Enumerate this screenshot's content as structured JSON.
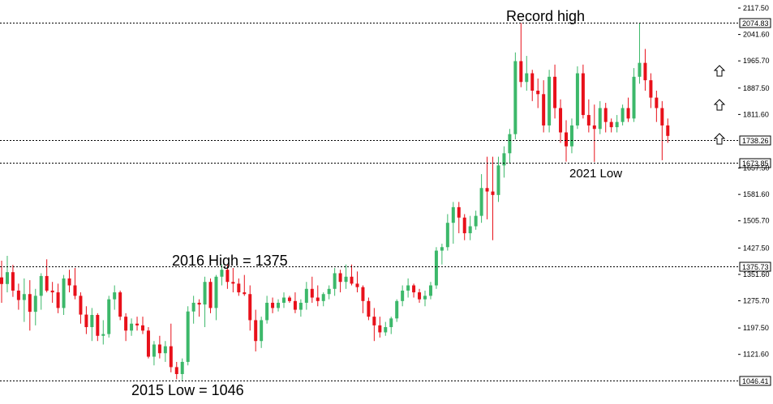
{
  "chart_data": {
    "type": "candlestick",
    "title": "",
    "xlabel": "",
    "ylabel": "",
    "ylim": [
      1046.41,
      2117.5
    ],
    "grid": false,
    "colors": {
      "up": "#3cb86a",
      "down": "#e8101a",
      "level_line": "#000000"
    },
    "y_ticks": [
      "2117.50",
      "2041.60",
      "1965.70",
      "1887.50",
      "1811.60",
      "1657.50",
      "1581.60",
      "1505.70",
      "1427.50",
      "1351.60",
      "1275.70",
      "1197.50",
      "1121.60"
    ],
    "levels": [
      {
        "value": 2074.83,
        "label": "2074.83"
      },
      {
        "value": 1738.26,
        "label": "1738.26"
      },
      {
        "value": 1673.85,
        "label": "1673.85"
      },
      {
        "value": 1375.73,
        "label": "1375.73"
      },
      {
        "value": 1046.41,
        "label": "1046.41"
      }
    ],
    "annotations": [
      {
        "text": "Record high"
      },
      {
        "text": "2021 Low"
      },
      {
        "text": "2016 High = 1375"
      },
      {
        "text": "2015 Low = 1046"
      }
    ],
    "candles": [
      [
        1343,
        1391,
        1270,
        1324
      ],
      [
        1324,
        1405,
        1300,
        1358
      ],
      [
        1358,
        1379,
        1287,
        1305
      ],
      [
        1305,
        1325,
        1250,
        1278
      ],
      [
        1278,
        1340,
        1215,
        1295
      ],
      [
        1295,
        1335,
        1190,
        1244
      ],
      [
        1244,
        1310,
        1205,
        1290
      ],
      [
        1290,
        1355,
        1250,
        1347
      ],
      [
        1347,
        1395,
        1300,
        1305
      ],
      [
        1305,
        1330,
        1270,
        1300
      ],
      [
        1300,
        1325,
        1240,
        1255
      ],
      [
        1255,
        1350,
        1235,
        1340
      ],
      [
        1340,
        1365,
        1300,
        1320
      ],
      [
        1320,
        1370,
        1280,
        1290
      ],
      [
        1290,
        1300,
        1210,
        1236
      ],
      [
        1236,
        1260,
        1180,
        1200
      ],
      [
        1200,
        1255,
        1160,
        1235
      ],
      [
        1235,
        1240,
        1160,
        1175
      ],
      [
        1175,
        1220,
        1150,
        1180
      ],
      [
        1180,
        1290,
        1170,
        1280
      ],
      [
        1280,
        1320,
        1250,
        1300
      ],
      [
        1300,
        1305,
        1220,
        1230
      ],
      [
        1230,
        1240,
        1160,
        1190
      ],
      [
        1190,
        1225,
        1175,
        1210
      ],
      [
        1210,
        1230,
        1190,
        1205
      ],
      [
        1205,
        1230,
        1180,
        1190
      ],
      [
        1190,
        1200,
        1110,
        1115
      ],
      [
        1115,
        1160,
        1090,
        1150
      ],
      [
        1150,
        1175,
        1110,
        1125
      ],
      [
        1125,
        1160,
        1100,
        1145
      ],
      [
        1145,
        1210,
        1070,
        1085
      ],
      [
        1085,
        1100,
        1050,
        1065
      ],
      [
        1065,
        1110,
        1045,
        1100
      ],
      [
        1100,
        1260,
        1090,
        1245
      ],
      [
        1245,
        1290,
        1210,
        1270
      ],
      [
        1270,
        1280,
        1230,
        1265
      ],
      [
        1265,
        1345,
        1200,
        1330
      ],
      [
        1330,
        1340,
        1240,
        1255
      ],
      [
        1255,
        1350,
        1220,
        1345
      ],
      [
        1345,
        1380,
        1320,
        1365
      ],
      [
        1365,
        1380,
        1310,
        1330
      ],
      [
        1330,
        1370,
        1300,
        1325
      ],
      [
        1325,
        1340,
        1290,
        1300
      ],
      [
        1300,
        1350,
        1290,
        1295
      ],
      [
        1295,
        1320,
        1190,
        1220
      ],
      [
        1220,
        1250,
        1130,
        1160
      ],
      [
        1160,
        1230,
        1140,
        1220
      ],
      [
        1220,
        1290,
        1210,
        1270
      ],
      [
        1270,
        1285,
        1240,
        1255
      ],
      [
        1255,
        1280,
        1245,
        1270
      ],
      [
        1270,
        1300,
        1255,
        1285
      ],
      [
        1285,
        1290,
        1270,
        1275
      ],
      [
        1275,
        1300,
        1240,
        1250
      ],
      [
        1250,
        1280,
        1230,
        1270
      ],
      [
        1270,
        1330,
        1250,
        1310
      ],
      [
        1310,
        1345,
        1270,
        1285
      ],
      [
        1285,
        1320,
        1260,
        1275
      ],
      [
        1275,
        1300,
        1260,
        1295
      ],
      [
        1295,
        1320,
        1280,
        1310
      ],
      [
        1310,
        1370,
        1290,
        1355
      ],
      [
        1355,
        1365,
        1300,
        1330
      ],
      [
        1330,
        1380,
        1310,
        1345
      ],
      [
        1345,
        1380,
        1320,
        1325
      ],
      [
        1325,
        1360,
        1300,
        1315
      ],
      [
        1315,
        1320,
        1240,
        1275
      ],
      [
        1275,
        1285,
        1220,
        1230
      ],
      [
        1230,
        1255,
        1160,
        1205
      ],
      [
        1205,
        1230,
        1170,
        1185
      ],
      [
        1185,
        1215,
        1175,
        1200
      ],
      [
        1200,
        1230,
        1180,
        1225
      ],
      [
        1225,
        1280,
        1215,
        1275
      ],
      [
        1275,
        1320,
        1260,
        1305
      ],
      [
        1305,
        1340,
        1285,
        1320
      ],
      [
        1320,
        1325,
        1285,
        1300
      ],
      [
        1300,
        1310,
        1270,
        1280
      ],
      [
        1280,
        1305,
        1260,
        1290
      ],
      [
        1290,
        1330,
        1280,
        1320
      ],
      [
        1320,
        1430,
        1310,
        1420
      ],
      [
        1420,
        1440,
        1380,
        1430
      ],
      [
        1430,
        1525,
        1420,
        1500
      ],
      [
        1500,
        1560,
        1440,
        1545
      ],
      [
        1545,
        1560,
        1470,
        1515
      ],
      [
        1515,
        1525,
        1450,
        1470
      ],
      [
        1470,
        1520,
        1450,
        1490
      ],
      [
        1490,
        1535,
        1480,
        1520
      ],
      [
        1520,
        1640,
        1500,
        1600
      ],
      [
        1600,
        1690,
        1510,
        1590
      ],
      [
        1590,
        1690,
        1450,
        1580
      ],
      [
        1580,
        1690,
        1560,
        1665
      ],
      [
        1665,
        1720,
        1630,
        1700
      ],
      [
        1700,
        1770,
        1670,
        1755
      ],
      [
        1755,
        1990,
        1740,
        1965
      ],
      [
        1965,
        2074.83,
        1890,
        1905
      ],
      [
        1905,
        1980,
        1880,
        1930
      ],
      [
        1930,
        1940,
        1850,
        1880
      ],
      [
        1880,
        1915,
        1830,
        1870
      ],
      [
        1870,
        1910,
        1760,
        1780
      ],
      [
        1780,
        1940,
        1760,
        1920
      ],
      [
        1920,
        1955,
        1800,
        1830
      ],
      [
        1830,
        1855,
        1730,
        1760
      ],
      [
        1760,
        1795,
        1676,
        1720
      ],
      [
        1720,
        1800,
        1700,
        1780
      ],
      [
        1780,
        1950,
        1770,
        1930
      ],
      [
        1930,
        1955,
        1800,
        1810
      ],
      [
        1810,
        1855,
        1760,
        1780
      ],
      [
        1780,
        1840,
        1675,
        1770
      ],
      [
        1770,
        1850,
        1755,
        1830
      ],
      [
        1830,
        1845,
        1760,
        1790
      ],
      [
        1790,
        1800,
        1760,
        1775
      ],
      [
        1775,
        1810,
        1760,
        1790
      ],
      [
        1790,
        1840,
        1780,
        1830
      ],
      [
        1830,
        1860,
        1790,
        1800
      ],
      [
        1800,
        1945,
        1790,
        1920
      ],
      [
        1920,
        2074.83,
        1900,
        1960
      ],
      [
        1960,
        2000,
        1880,
        1910
      ],
      [
        1910,
        1930,
        1830,
        1860
      ],
      [
        1860,
        1880,
        1790,
        1830
      ],
      [
        1830,
        1850,
        1680,
        1780
      ],
      [
        1780,
        1800,
        1730,
        1750
      ]
    ]
  }
}
